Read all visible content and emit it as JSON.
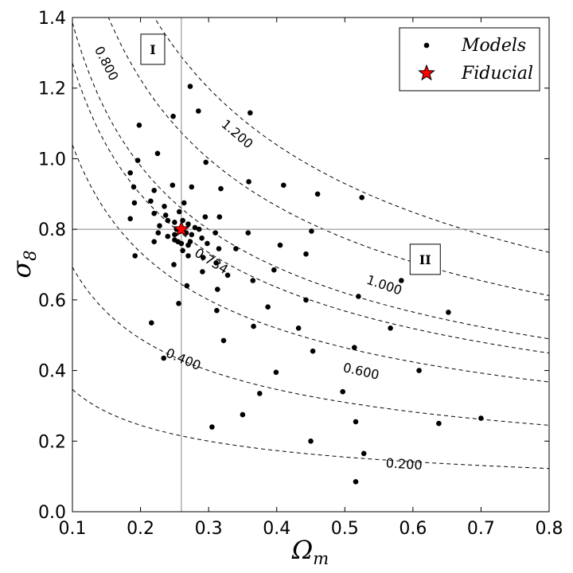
{
  "chart_data": {
    "type": "scatter",
    "xlabel": "Ωm",
    "ylabel": "σ8",
    "xlim": [
      0.1,
      0.8
    ],
    "ylim": [
      0.0,
      1.4
    ],
    "xticks": [
      "0.1",
      "0.2",
      "0.3",
      "0.4",
      "0.5",
      "0.6",
      "0.7",
      "0.8"
    ],
    "yticks": [
      "0.0",
      "0.2",
      "0.4",
      "0.6",
      "0.8",
      "1.0",
      "1.2",
      "1.4"
    ],
    "grid": false,
    "legend_position": "top-right",
    "legend": [
      {
        "label": "Models",
        "marker": "dot",
        "color": "#000000"
      },
      {
        "label": "Fiducial",
        "marker": "star",
        "color": "#ff0000"
      }
    ],
    "reference_lines": {
      "x": 0.26,
      "y": 0.8
    },
    "regions": [
      {
        "label": "I",
        "x": 0.218,
        "y": 1.31
      },
      {
        "label": "II",
        "x": 0.618,
        "y": 0.715
      }
    ],
    "contours": [
      {
        "label": "0.200",
        "S8": 0.2,
        "label_at": [
          0.587,
          0.135
        ]
      },
      {
        "label": "0.400",
        "S8": 0.4,
        "label_at": [
          0.263,
          0.432
        ]
      },
      {
        "label": "0.600",
        "S8": 0.6,
        "label_at": [
          0.524,
          0.398
        ]
      },
      {
        "label": "0.734",
        "S8": 0.734,
        "label_at": [
          0.304,
          0.71
        ]
      },
      {
        "label": "0.800",
        "S8": 0.8,
        "label_at": [
          0.15,
          1.27
        ]
      },
      {
        "label": "1.000",
        "S8": 1.0,
        "label_at": [
          0.558,
          0.642
        ]
      },
      {
        "label": "1.200",
        "S8": 1.2,
        "label_at": [
          0.342,
          1.07
        ]
      }
    ],
    "series": [
      {
        "name": "Models",
        "points": [
          [
            0.185,
            0.96
          ],
          [
            0.198,
            1.095
          ],
          [
            0.196,
            0.995
          ],
          [
            0.225,
            1.015
          ],
          [
            0.248,
            1.12
          ],
          [
            0.273,
            1.205
          ],
          [
            0.285,
            1.135
          ],
          [
            0.361,
            1.13
          ],
          [
            0.19,
            0.92
          ],
          [
            0.22,
            0.91
          ],
          [
            0.185,
            0.83
          ],
          [
            0.191,
            0.875
          ],
          [
            0.215,
            0.88
          ],
          [
            0.22,
            0.845
          ],
          [
            0.235,
            0.865
          ],
          [
            0.237,
            0.84
          ],
          [
            0.247,
            0.925
          ],
          [
            0.275,
            0.92
          ],
          [
            0.257,
            0.85
          ],
          [
            0.264,
            0.875
          ],
          [
            0.296,
            0.99
          ],
          [
            0.318,
            0.915
          ],
          [
            0.359,
            0.935
          ],
          [
            0.41,
            0.925
          ],
          [
            0.46,
            0.9
          ],
          [
            0.525,
            0.89
          ],
          [
            0.228,
            0.81
          ],
          [
            0.24,
            0.825
          ],
          [
            0.226,
            0.79
          ],
          [
            0.22,
            0.765
          ],
          [
            0.192,
            0.725
          ],
          [
            0.25,
            0.82
          ],
          [
            0.262,
            0.825
          ],
          [
            0.27,
            0.815
          ],
          [
            0.28,
            0.805
          ],
          [
            0.295,
            0.835
          ],
          [
            0.316,
            0.835
          ],
          [
            0.253,
            0.8
          ],
          [
            0.25,
            0.785
          ],
          [
            0.258,
            0.795
          ],
          [
            0.267,
            0.79
          ],
          [
            0.286,
            0.8
          ],
          [
            0.275,
            0.785
          ],
          [
            0.273,
            0.765
          ],
          [
            0.29,
            0.775
          ],
          [
            0.31,
            0.79
          ],
          [
            0.298,
            0.76
          ],
          [
            0.315,
            0.745
          ],
          [
            0.358,
            0.79
          ],
          [
            0.405,
            0.755
          ],
          [
            0.451,
            0.795
          ],
          [
            0.24,
            0.78
          ],
          [
            0.255,
            0.765
          ],
          [
            0.27,
            0.755
          ],
          [
            0.25,
            0.77
          ],
          [
            0.26,
            0.76
          ],
          [
            0.249,
            0.7
          ],
          [
            0.262,
            0.74
          ],
          [
            0.27,
            0.725
          ],
          [
            0.292,
            0.72
          ],
          [
            0.291,
            0.68
          ],
          [
            0.311,
            0.705
          ],
          [
            0.34,
            0.745
          ],
          [
            0.328,
            0.67
          ],
          [
            0.396,
            0.685
          ],
          [
            0.443,
            0.73
          ],
          [
            0.268,
            0.64
          ],
          [
            0.313,
            0.63
          ],
          [
            0.365,
            0.655
          ],
          [
            0.256,
            0.59
          ],
          [
            0.312,
            0.57
          ],
          [
            0.387,
            0.58
          ],
          [
            0.443,
            0.6
          ],
          [
            0.52,
            0.61
          ],
          [
            0.583,
            0.655
          ],
          [
            0.652,
            0.565
          ],
          [
            0.216,
            0.535
          ],
          [
            0.322,
            0.485
          ],
          [
            0.366,
            0.525
          ],
          [
            0.432,
            0.52
          ],
          [
            0.567,
            0.52
          ],
          [
            0.234,
            0.435
          ],
          [
            0.399,
            0.395
          ],
          [
            0.453,
            0.455
          ],
          [
            0.514,
            0.465
          ],
          [
            0.375,
            0.335
          ],
          [
            0.497,
            0.34
          ],
          [
            0.305,
            0.24
          ],
          [
            0.35,
            0.275
          ],
          [
            0.516,
            0.255
          ],
          [
            0.609,
            0.4
          ],
          [
            0.638,
            0.25
          ],
          [
            0.7,
            0.265
          ],
          [
            0.45,
            0.2
          ],
          [
            0.528,
            0.165
          ],
          [
            0.516,
            0.085
          ]
        ]
      },
      {
        "name": "Fiducial",
        "points": [
          [
            0.26,
            0.8
          ]
        ]
      }
    ]
  }
}
